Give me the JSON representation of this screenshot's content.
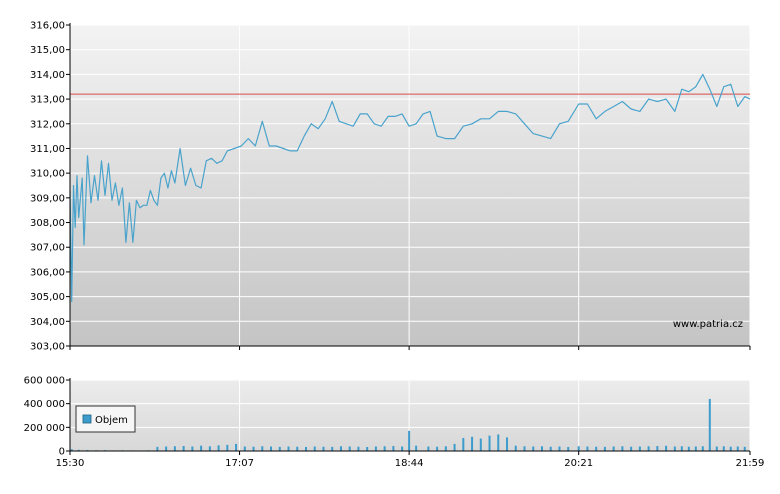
{
  "watermark": "www.patria.cz",
  "colors": {
    "price_line": "#4aa3cc",
    "reference_line": "#d84a4a",
    "volume_bars": "#3d9ccc",
    "legend_swatch": "#3d9ccc",
    "plot_bg_top": "#f3f3f3",
    "plot_bg_bottom": "#c4c4c4",
    "grid": "#ffffff",
    "axis": "#000000"
  },
  "chart_data": [
    {
      "type": "line",
      "name": "price",
      "x_ticks": [
        "15:30",
        "17:07",
        "18:44",
        "20:21",
        "21:59"
      ],
      "y_ticks": [
        "303,00",
        "304,00",
        "305,00",
        "306,00",
        "307,00",
        "308,00",
        "309,00",
        "310,00",
        "311,00",
        "312,00",
        "313,00",
        "314,00",
        "315,00",
        "316,00"
      ],
      "ylim": [
        303,
        316
      ],
      "reference_line": 313.2,
      "grid": true,
      "x": [
        "15:30",
        "15:31",
        "15:32",
        "15:33",
        "15:34",
        "15:35",
        "15:37",
        "15:38",
        "15:40",
        "15:42",
        "15:44",
        "15:46",
        "15:48",
        "15:50",
        "15:52",
        "15:54",
        "15:56",
        "15:58",
        "16:00",
        "16:02",
        "16:04",
        "16:06",
        "16:08",
        "16:10",
        "16:12",
        "16:14",
        "16:16",
        "16:18",
        "16:20",
        "16:22",
        "16:24",
        "16:26",
        "16:28",
        "16:30",
        "16:33",
        "16:36",
        "16:39",
        "16:42",
        "16:45",
        "16:48",
        "16:51",
        "16:54",
        "16:57",
        "17:00",
        "17:04",
        "17:08",
        "17:12",
        "17:16",
        "17:20",
        "17:24",
        "17:28",
        "17:32",
        "17:36",
        "17:40",
        "17:44",
        "17:48",
        "17:52",
        "17:56",
        "18:00",
        "18:04",
        "18:08",
        "18:12",
        "18:16",
        "18:20",
        "18:24",
        "18:28",
        "18:32",
        "18:36",
        "18:40",
        "18:44",
        "18:48",
        "18:52",
        "18:56",
        "19:00",
        "19:05",
        "19:10",
        "19:15",
        "19:20",
        "19:25",
        "19:30",
        "19:35",
        "19:40",
        "19:45",
        "19:50",
        "19:55",
        "20:00",
        "20:05",
        "20:10",
        "20:15",
        "20:21",
        "20:26",
        "20:31",
        "20:36",
        "20:41",
        "20:46",
        "20:51",
        "20:56",
        "21:01",
        "21:06",
        "21:11",
        "21:16",
        "21:20",
        "21:24",
        "21:28",
        "21:32",
        "21:36",
        "21:40",
        "21:44",
        "21:48",
        "21:52",
        "21:56",
        "21:59"
      ],
      "y": [
        309.3,
        304.8,
        309.5,
        307.8,
        309.9,
        308.2,
        309.8,
        307.1,
        310.7,
        308.8,
        309.9,
        308.9,
        310.5,
        309.1,
        310.4,
        308.9,
        309.6,
        308.7,
        309.4,
        307.2,
        308.8,
        307.2,
        308.9,
        308.6,
        308.7,
        308.7,
        309.3,
        308.9,
        308.7,
        309.8,
        310.0,
        309.4,
        310.1,
        309.6,
        311.0,
        309.5,
        310.2,
        309.5,
        309.4,
        310.5,
        310.6,
        310.4,
        310.5,
        310.9,
        311.0,
        311.1,
        311.4,
        311.1,
        312.1,
        311.1,
        311.1,
        311.0,
        310.9,
        310.9,
        311.5,
        312.0,
        311.8,
        312.2,
        312.9,
        312.1,
        312.0,
        311.9,
        312.4,
        312.4,
        312.0,
        311.9,
        312.3,
        312.3,
        312.4,
        311.9,
        312.0,
        312.4,
        312.5,
        311.5,
        311.4,
        311.4,
        311.9,
        312.0,
        312.2,
        312.2,
        312.5,
        312.5,
        312.4,
        312.0,
        311.6,
        311.5,
        311.4,
        312.0,
        312.1,
        312.8,
        312.8,
        312.2,
        312.5,
        312.7,
        312.9,
        312.6,
        312.5,
        313.0,
        312.9,
        313.0,
        312.5,
        313.4,
        313.3,
        313.5,
        314.0,
        313.4,
        312.7,
        313.5,
        313.6,
        312.7,
        313.1,
        313.0
      ]
    },
    {
      "type": "bar",
      "name": "volume",
      "legend": [
        "Objem"
      ],
      "legend_position": "left",
      "y_ticks": [
        "0",
        "200 000",
        "400 000",
        "600 000"
      ],
      "ylim": [
        0,
        600000
      ],
      "grid": true,
      "x": [
        "15:31",
        "15:35",
        "15:40",
        "15:45",
        "15:50",
        "15:55",
        "16:00",
        "16:05",
        "16:10",
        "16:15",
        "16:20",
        "16:25",
        "16:30",
        "16:35",
        "16:40",
        "16:45",
        "16:50",
        "16:55",
        "17:00",
        "17:05",
        "17:10",
        "17:15",
        "17:20",
        "17:25",
        "17:30",
        "17:35",
        "17:40",
        "17:45",
        "17:50",
        "17:55",
        "18:00",
        "18:05",
        "18:10",
        "18:15",
        "18:20",
        "18:25",
        "18:30",
        "18:35",
        "18:40",
        "18:44",
        "18:48",
        "18:55",
        "19:00",
        "19:05",
        "19:10",
        "19:15",
        "19:20",
        "19:25",
        "19:30",
        "19:35",
        "19:40",
        "19:45",
        "19:50",
        "19:55",
        "20:00",
        "20:05",
        "20:10",
        "20:15",
        "20:21",
        "20:26",
        "20:31",
        "20:36",
        "20:41",
        "20:46",
        "20:51",
        "20:56",
        "21:01",
        "21:06",
        "21:11",
        "21:16",
        "21:20",
        "21:24",
        "21:28",
        "21:32",
        "21:36",
        "21:40",
        "21:44",
        "21:48",
        "21:52",
        "21:56"
      ],
      "values": [
        15000,
        10000,
        8000,
        6000,
        7000,
        5000,
        6000,
        5000,
        4000,
        6000,
        35000,
        38000,
        40000,
        42000,
        38000,
        45000,
        40000,
        48000,
        52000,
        60000,
        38000,
        36000,
        40000,
        38000,
        35000,
        38000,
        36000,
        34000,
        38000,
        36000,
        35000,
        40000,
        38000,
        36000,
        34000,
        38000,
        40000,
        42000,
        38000,
        170000,
        45000,
        38000,
        36000,
        40000,
        60000,
        110000,
        120000,
        105000,
        130000,
        140000,
        115000,
        45000,
        40000,
        38000,
        40000,
        36000,
        38000,
        34000,
        40000,
        38000,
        36000,
        35000,
        38000,
        40000,
        36000,
        38000,
        40000,
        42000,
        44000,
        38000,
        40000,
        36000,
        38000,
        40000,
        440000,
        38000,
        40000,
        36000,
        38000,
        35000
      ]
    }
  ]
}
